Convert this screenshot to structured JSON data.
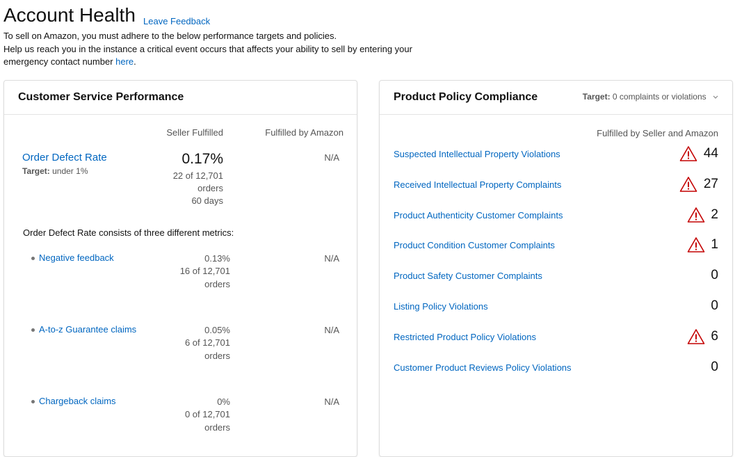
{
  "header": {
    "title": "Account Health",
    "feedback_link": "Leave Feedback",
    "intro_line1": "To sell on Amazon, you must adhere to the below performance targets and policies.",
    "intro_line2": "Help us reach you in the instance a critical event occurs that affects your ability to sell by entering your emergency contact number ",
    "intro_link": "here",
    "intro_end": "."
  },
  "customer_service": {
    "title": "Customer Service Performance",
    "col_seller": "Seller Fulfilled",
    "col_fba": "Fulfilled by Amazon",
    "odr": {
      "label": "Order Defect Rate",
      "target_label": "Target:",
      "target_value": " under 1%",
      "value": "0.17%",
      "detail1": "22 of 12,701",
      "detail2": "orders",
      "detail3": "60 days",
      "fba": "N/A"
    },
    "consists_text": "Order Defect Rate consists of three different metrics:",
    "metrics": [
      {
        "label": "Negative feedback",
        "value": "0.13%",
        "count": "16 of 12,701",
        "unit": "orders",
        "fba": "N/A"
      },
      {
        "label": "A-to-z Guarantee claims",
        "value": "0.05%",
        "count": "6 of 12,701",
        "unit": "orders",
        "fba": "N/A"
      },
      {
        "label": "Chargeback claims",
        "value": "0%",
        "count": "0 of 12,701",
        "unit": "orders",
        "fba": "N/A"
      }
    ]
  },
  "product_policy": {
    "title": "Product Policy Compliance",
    "target_label": "Target:",
    "target_value": " 0 complaints or violations",
    "col_head": "Fulfilled by Seller and Amazon",
    "rows": [
      {
        "label": "Suspected Intellectual Property Violations",
        "count": "44",
        "warning": true
      },
      {
        "label": "Received Intellectual Property Complaints",
        "count": "27",
        "warning": true
      },
      {
        "label": "Product Authenticity Customer Complaints",
        "count": "2",
        "warning": true
      },
      {
        "label": "Product Condition Customer Complaints",
        "count": "1",
        "warning": true
      },
      {
        "label": "Product Safety Customer Complaints",
        "count": "0",
        "warning": false
      },
      {
        "label": "Listing Policy Violations",
        "count": "0",
        "warning": false
      },
      {
        "label": "Restricted Product Policy Violations",
        "count": "6",
        "warning": true
      },
      {
        "label": "Customer Product Reviews Policy Violations",
        "count": "0",
        "warning": false
      }
    ]
  },
  "icons": {
    "warning": "warning-triangle-icon",
    "dropdown": "chevron-down-icon",
    "bullet": "bullet-icon"
  },
  "colors": {
    "link": "#0066c0",
    "warning": "#c40000",
    "text": "#111111",
    "muted": "#555555"
  }
}
